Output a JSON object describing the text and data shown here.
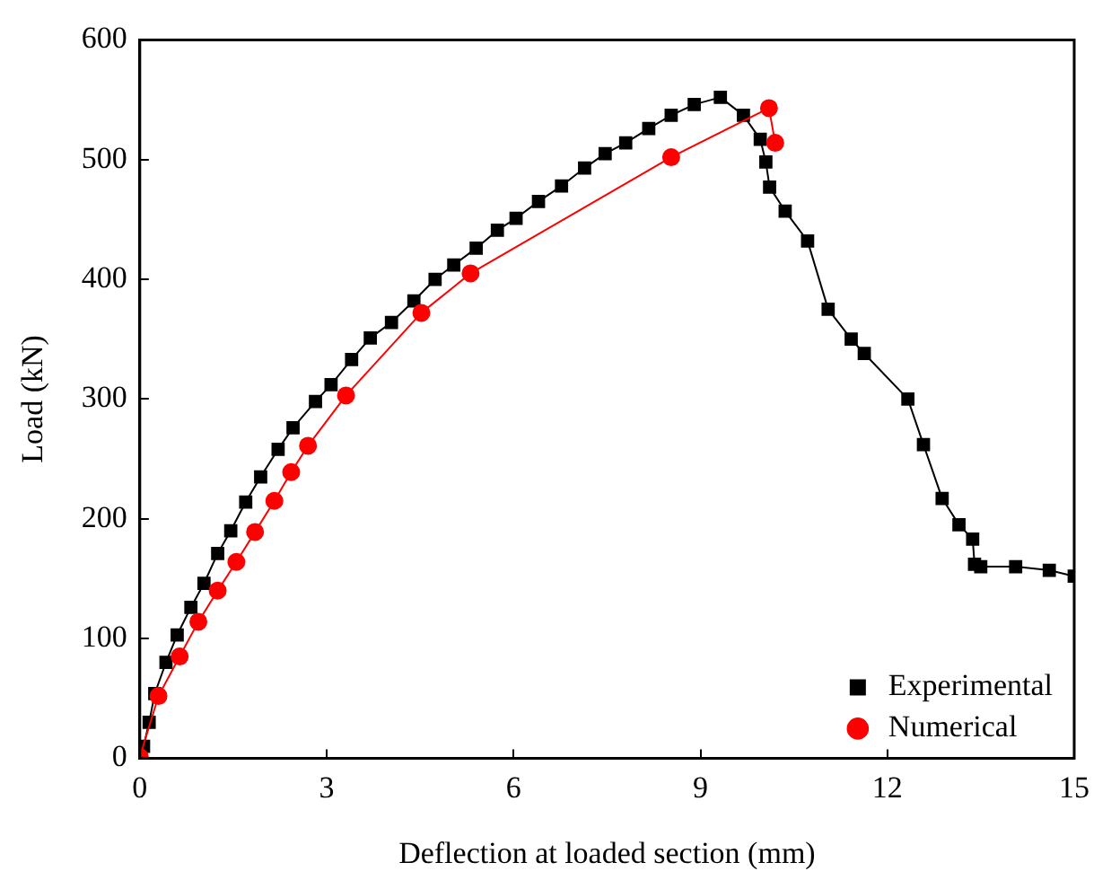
{
  "chart_data": {
    "type": "line",
    "xlabel": "Deflection at loaded section (mm)",
    "ylabel": "Load (kN)",
    "xlim": [
      0,
      15
    ],
    "xticks": [
      0,
      3,
      6,
      9,
      12,
      15
    ],
    "ylim": [
      0,
      600
    ],
    "yticks": [
      0,
      100,
      200,
      300,
      400,
      500,
      600
    ],
    "grid": false,
    "legend": "bottom right",
    "line_style": "solid",
    "series": [
      {
        "name": "Experimental",
        "color": "#000000",
        "marker": "square",
        "x": [
          0,
          0.06,
          0.15,
          0.24,
          0.42,
          0.6,
          0.82,
          1.03,
          1.25,
          1.46,
          1.7,
          1.94,
          2.22,
          2.46,
          2.82,
          3.07,
          3.4,
          3.7,
          4.04,
          4.4,
          4.74,
          5.04,
          5.4,
          5.74,
          6.04,
          6.4,
          6.77,
          7.14,
          7.47,
          7.8,
          8.17,
          8.53,
          8.9,
          9.32,
          9.69,
          9.96,
          10.05,
          10.11,
          10.36,
          10.72,
          11.05,
          11.42,
          11.63,
          12.33,
          12.58,
          12.88,
          13.15,
          13.37,
          13.4,
          13.5,
          14.06,
          14.6,
          15
        ],
        "values": [
          0,
          10,
          30,
          54,
          80,
          103,
          126,
          146,
          171,
          190,
          214,
          235,
          258,
          276,
          298,
          312,
          333,
          351,
          364,
          382,
          400,
          412,
          426,
          441,
          451,
          465,
          478,
          493,
          505,
          514,
          526,
          537,
          546,
          552,
          537,
          517,
          498,
          477,
          457,
          432,
          375,
          350,
          338,
          300,
          262,
          217,
          195,
          183,
          162,
          160,
          160,
          157,
          152
        ]
      },
      {
        "name": "Numerical",
        "color": "#ff0000",
        "marker": "circle",
        "x": [
          0,
          0.3,
          0.64,
          0.94,
          1.25,
          1.55,
          1.85,
          2.16,
          2.43,
          2.7,
          3.31,
          4.52,
          5.31,
          8.53,
          10.1,
          10.2
        ],
        "values": [
          1,
          52,
          85,
          114,
          140,
          164,
          189,
          215,
          239,
          261,
          303,
          372,
          405,
          502,
          543,
          514
        ]
      }
    ]
  }
}
